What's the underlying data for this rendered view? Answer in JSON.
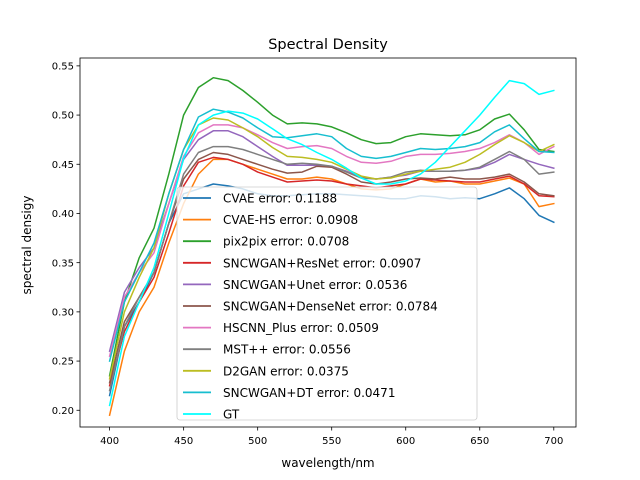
{
  "chart_data": {
    "type": "line",
    "title": "Spectral Density",
    "xlabel": "wavelength/nm",
    "ylabel": "spectral densigy",
    "xlim": [
      380,
      715
    ],
    "ylim": [
      0.183,
      0.558
    ],
    "xticks": [
      400,
      450,
      500,
      550,
      600,
      650,
      700
    ],
    "yticks": [
      0.2,
      0.25,
      0.3,
      0.35,
      0.4,
      0.45,
      0.5,
      0.55
    ],
    "ytick_labels": [
      "0.20",
      "0.25",
      "0.30",
      "0.35",
      "0.40",
      "0.45",
      "0.50",
      "0.55"
    ],
    "x": [
      400,
      410,
      420,
      430,
      440,
      450,
      460,
      470,
      480,
      490,
      500,
      510,
      520,
      530,
      540,
      550,
      560,
      570,
      580,
      590,
      600,
      610,
      620,
      630,
      640,
      650,
      660,
      670,
      680,
      690,
      700
    ],
    "legend_position": "bottom-center",
    "series": [
      {
        "name": "CVAE error: 0.1188",
        "color": "#1f77b4",
        "values": [
          0.215,
          0.285,
          0.31,
          0.34,
          0.39,
          0.42,
          0.425,
          0.43,
          0.428,
          0.425,
          0.42,
          0.418,
          0.418,
          0.419,
          0.42,
          0.42,
          0.419,
          0.418,
          0.417,
          0.415,
          0.415,
          0.418,
          0.417,
          0.415,
          0.416,
          0.415,
          0.42,
          0.426,
          0.415,
          0.398,
          0.391
        ]
      },
      {
        "name": "CVAE-HS error: 0.0908",
        "color": "#ff7f0e",
        "values": [
          0.195,
          0.26,
          0.3,
          0.325,
          0.37,
          0.41,
          0.44,
          0.455,
          0.455,
          0.45,
          0.445,
          0.44,
          0.435,
          0.435,
          0.437,
          0.435,
          0.43,
          0.425,
          0.424,
          0.425,
          0.43,
          0.435,
          0.432,
          0.433,
          0.43,
          0.43,
          0.433,
          0.436,
          0.43,
          0.407,
          0.41
        ]
      },
      {
        "name": "pix2pix error: 0.0708",
        "color": "#2ca02c",
        "values": [
          0.235,
          0.31,
          0.355,
          0.385,
          0.44,
          0.5,
          0.528,
          0.538,
          0.535,
          0.525,
          0.513,
          0.5,
          0.491,
          0.492,
          0.491,
          0.488,
          0.482,
          0.475,
          0.471,
          0.472,
          0.478,
          0.481,
          0.48,
          0.479,
          0.48,
          0.485,
          0.496,
          0.501,
          0.485,
          0.465,
          0.463
        ]
      },
      {
        "name": "SNCWGAN+ResNet error: 0.0907",
        "color": "#d62728",
        "values": [
          0.225,
          0.28,
          0.31,
          0.335,
          0.38,
          0.428,
          0.452,
          0.457,
          0.455,
          0.45,
          0.442,
          0.437,
          0.432,
          0.433,
          0.434,
          0.433,
          0.43,
          0.428,
          0.426,
          0.428,
          0.43,
          0.435,
          0.434,
          0.433,
          0.432,
          0.432,
          0.435,
          0.438,
          0.43,
          0.418,
          0.417
        ]
      },
      {
        "name": "SNCWGAN+Unet error: 0.0536",
        "color": "#9467bd",
        "values": [
          0.26,
          0.32,
          0.345,
          0.365,
          0.41,
          0.455,
          0.475,
          0.484,
          0.484,
          0.478,
          0.468,
          0.458,
          0.449,
          0.449,
          0.449,
          0.448,
          0.443,
          0.437,
          0.435,
          0.437,
          0.439,
          0.443,
          0.443,
          0.443,
          0.444,
          0.446,
          0.452,
          0.46,
          0.455,
          0.45,
          0.446
        ]
      },
      {
        "name": "SNCWGAN+DenseNet error: 0.0784",
        "color": "#8c564b",
        "values": [
          0.228,
          0.29,
          0.315,
          0.34,
          0.39,
          0.435,
          0.455,
          0.462,
          0.46,
          0.455,
          0.45,
          0.445,
          0.441,
          0.442,
          0.448,
          0.447,
          0.44,
          0.432,
          0.43,
          0.432,
          0.435,
          0.436,
          0.435,
          0.437,
          0.435,
          0.435,
          0.437,
          0.44,
          0.432,
          0.42,
          0.418
        ]
      },
      {
        "name": "HSCNN_Plus error: 0.0509",
        "color": "#e377c2",
        "values": [
          0.255,
          0.315,
          0.34,
          0.36,
          0.41,
          0.458,
          0.482,
          0.49,
          0.49,
          0.487,
          0.48,
          0.472,
          0.466,
          0.468,
          0.469,
          0.466,
          0.458,
          0.452,
          0.451,
          0.453,
          0.458,
          0.46,
          0.46,
          0.461,
          0.463,
          0.466,
          0.472,
          0.48,
          0.472,
          0.46,
          0.468
        ]
      },
      {
        "name": "MST++ error: 0.0556",
        "color": "#7f7f7f",
        "values": [
          0.22,
          0.285,
          0.315,
          0.34,
          0.39,
          0.44,
          0.462,
          0.468,
          0.468,
          0.465,
          0.46,
          0.455,
          0.45,
          0.451,
          0.45,
          0.448,
          0.442,
          0.436,
          0.435,
          0.437,
          0.442,
          0.444,
          0.443,
          0.443,
          0.444,
          0.447,
          0.455,
          0.463,
          0.455,
          0.44,
          0.442
        ]
      },
      {
        "name": "D2GAN error: 0.0375",
        "color": "#bcbd22",
        "values": [
          0.232,
          0.3,
          0.335,
          0.365,
          0.42,
          0.465,
          0.49,
          0.497,
          0.495,
          0.487,
          0.478,
          0.467,
          0.458,
          0.457,
          0.455,
          0.452,
          0.445,
          0.438,
          0.435,
          0.436,
          0.44,
          0.443,
          0.445,
          0.447,
          0.452,
          0.46,
          0.47,
          0.479,
          0.472,
          0.463,
          0.47
        ]
      },
      {
        "name": "SNCWGAN+DT error: 0.0471",
        "color": "#17becf",
        "values": [
          0.25,
          0.31,
          0.34,
          0.37,
          0.42,
          0.465,
          0.498,
          0.506,
          0.503,
          0.497,
          0.487,
          0.478,
          0.477,
          0.479,
          0.481,
          0.478,
          0.466,
          0.458,
          0.456,
          0.458,
          0.462,
          0.466,
          0.465,
          0.466,
          0.468,
          0.472,
          0.483,
          0.49,
          0.476,
          0.463,
          0.462
        ]
      },
      {
        "name": "GT",
        "color": "#00ffff",
        "values": [
          0.205,
          0.275,
          0.31,
          0.345,
          0.4,
          0.456,
          0.49,
          0.5,
          0.504,
          0.502,
          0.496,
          0.486,
          0.476,
          0.47,
          0.462,
          0.455,
          0.446,
          0.436,
          0.43,
          0.43,
          0.433,
          0.44,
          0.452,
          0.468,
          0.484,
          0.5,
          0.518,
          0.535,
          0.532,
          0.521,
          0.525
        ]
      }
    ]
  }
}
